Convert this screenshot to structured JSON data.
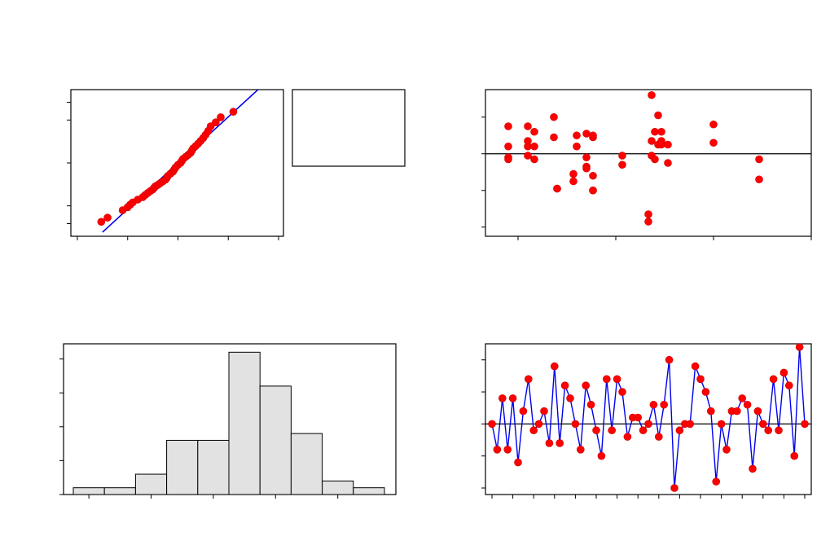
{
  "chart_data": [
    {
      "type": "scatter",
      "role": "normal-probability-plot",
      "xlim": [
        -40,
        40
      ],
      "ylim": [
        1,
        99
      ],
      "fit_line": {
        "x": [
          -30,
          35
        ],
        "y": [
          0.4,
          99.9
        ]
      },
      "points": {
        "x": [
          -30.5,
          -28,
          -22,
          -20,
          -19,
          -18,
          -16,
          -14,
          -13,
          -12,
          -11,
          -10,
          -9.5,
          -9,
          -8,
          -7,
          -6,
          -5,
          -4.5,
          -4,
          -3,
          -2,
          -1.5,
          -1,
          0,
          1,
          1.5,
          2,
          3,
          4,
          5,
          5.5,
          6,
          7,
          8,
          9,
          10,
          11,
          12,
          13,
          15,
          17,
          22
        ],
        "y": [
          1.2,
          1.8,
          3.5,
          4.5,
          5.5,
          6.5,
          8,
          9.5,
          11,
          12.5,
          14,
          15.5,
          17,
          18.5,
          20,
          22,
          24,
          26,
          28,
          31,
          34,
          37,
          40,
          43,
          47,
          50,
          53,
          56,
          59,
          62,
          65,
          68,
          71,
          74,
          77,
          80,
          83,
          86,
          89,
          92,
          94,
          96,
          97.5
        ]
      }
    },
    {
      "type": "scatter",
      "role": "residuals-vs-fitted",
      "xlim": [
        -5,
        95
      ],
      "ylim": [
        -45,
        35
      ],
      "reference_y": 0,
      "points": {
        "x": [
          2,
          2,
          2,
          2,
          8,
          8,
          8,
          8,
          10,
          10,
          10,
          16,
          16,
          17,
          17,
          22,
          22,
          23,
          23,
          26,
          26,
          26,
          26,
          28,
          28,
          28,
          28,
          28,
          37,
          37,
          45,
          45,
          46,
          46,
          46,
          47,
          47,
          48,
          48,
          49,
          49,
          49,
          51,
          51,
          65,
          65,
          79,
          79
        ],
        "y": [
          15,
          4,
          -2,
          -3,
          15,
          7,
          4,
          -1,
          12,
          4,
          -3,
          20,
          9,
          -19,
          -19,
          -11,
          -15,
          10,
          4,
          11,
          -2,
          -7,
          -8,
          -12,
          9,
          10,
          -20,
          -20,
          -1,
          -6,
          -33,
          -37,
          32,
          7,
          -1,
          12,
          -3,
          21,
          5,
          12,
          7,
          5,
          5,
          -5,
          16,
          6,
          -3,
          -14
        ]
      }
    },
    {
      "type": "bar",
      "role": "histogram",
      "values": [
        1,
        1,
        3,
        8,
        8,
        21,
        16,
        9,
        2,
        1
      ],
      "ylim": [
        0,
        22
      ]
    },
    {
      "type": "line",
      "role": "residuals-vs-order",
      "ylim": [
        -10,
        10
      ],
      "reference_y": 0,
      "values": [
        0,
        -4,
        4,
        -4,
        4,
        -6,
        2,
        7,
        -1,
        0,
        2,
        -3,
        9,
        -3,
        6,
        4,
        0,
        -4,
        6,
        3,
        -1,
        -5,
        7,
        -1,
        7,
        5,
        -2,
        1,
        1,
        -1,
        0,
        3,
        -2,
        3,
        10,
        -10,
        -1,
        0,
        0,
        9,
        7,
        5,
        2,
        -9,
        0,
        -4,
        2,
        2,
        4,
        3,
        -7,
        2,
        0,
        -1,
        7,
        -1,
        8,
        6,
        -5,
        12,
        0
      ]
    }
  ]
}
